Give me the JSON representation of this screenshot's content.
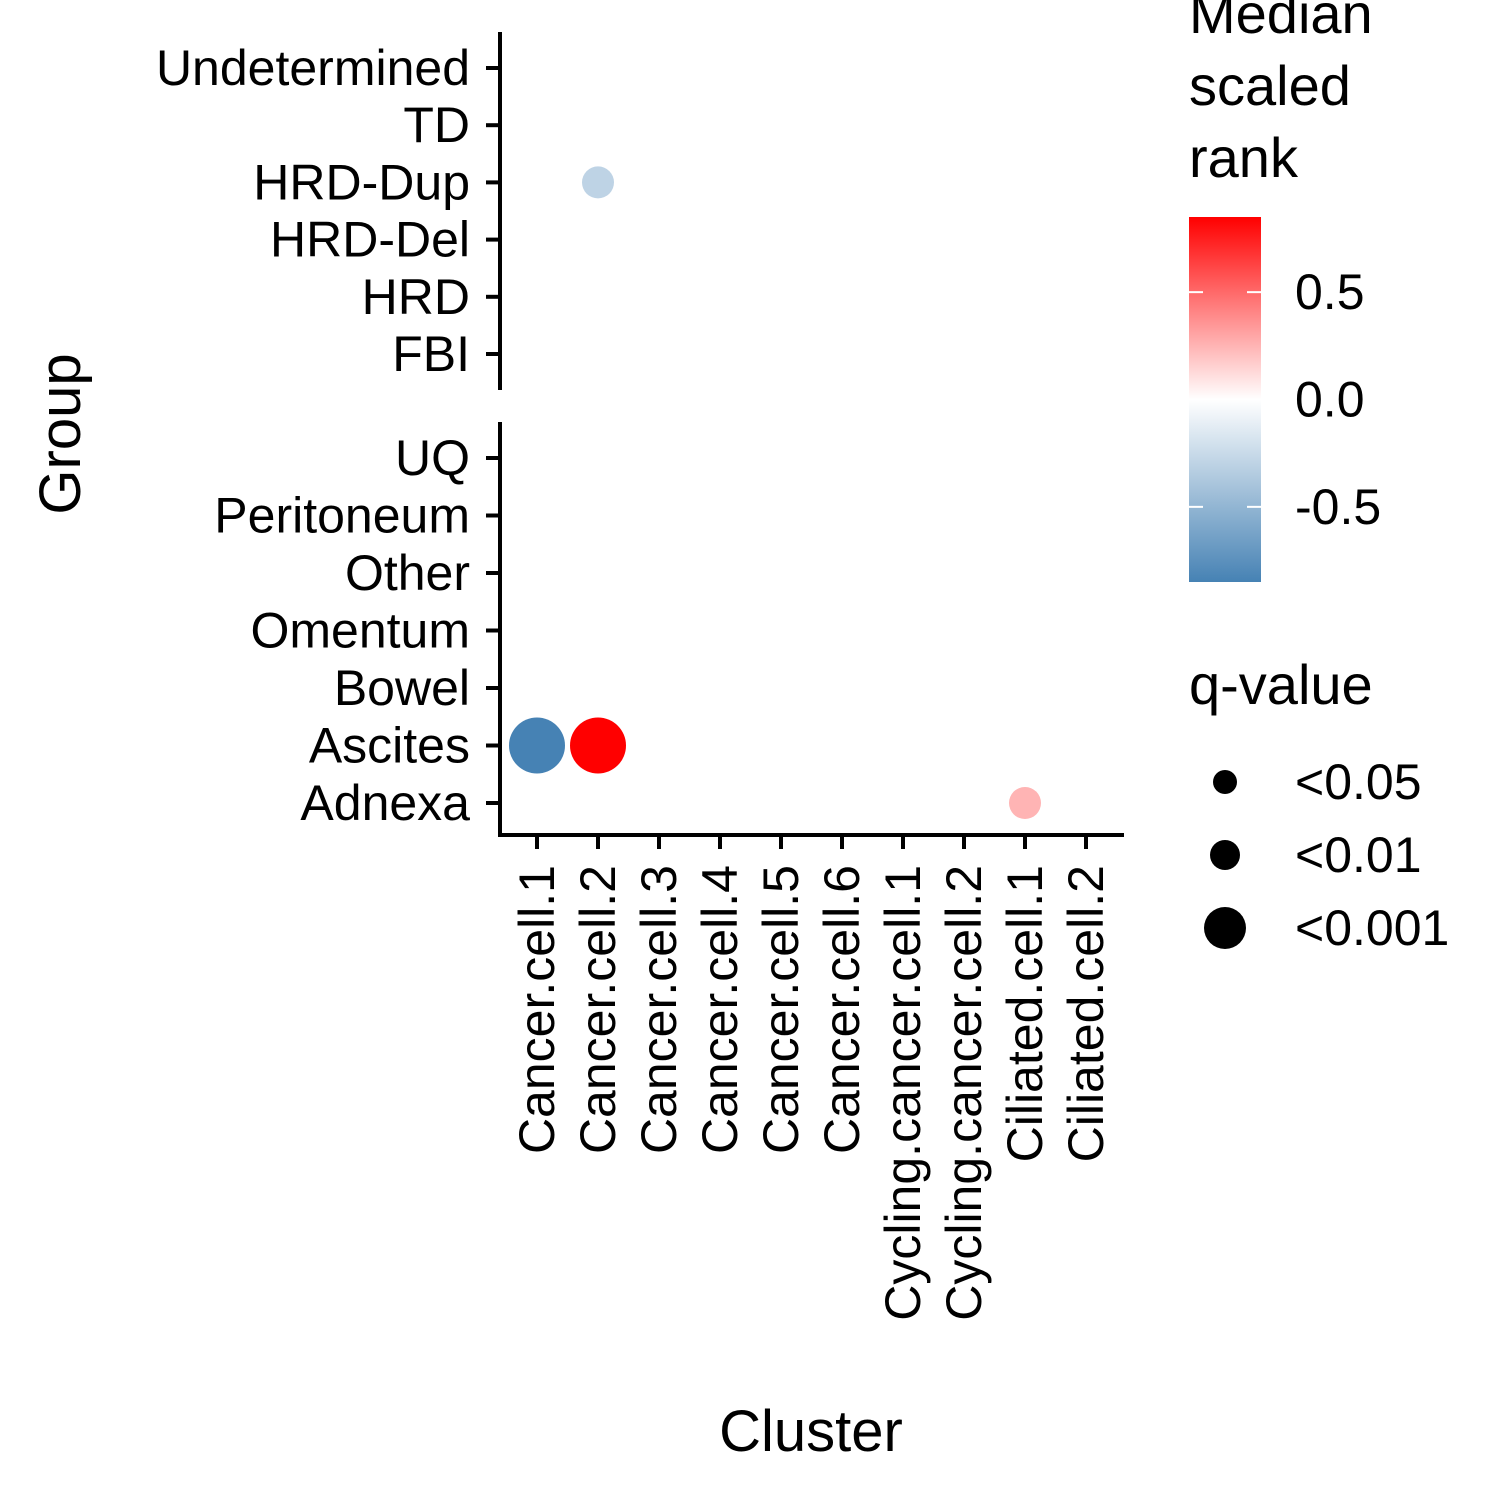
{
  "chart_data": {
    "type": "scatter",
    "title": "",
    "xlabel": "Cluster",
    "ylabel": "Group",
    "x_categories": [
      "Cancer.cell.1",
      "Cancer.cell.2",
      "Cancer.cell.3",
      "Cancer.cell.4",
      "Cancer.cell.5",
      "Cancer.cell.6",
      "Cycling.cancer.cell.1",
      "Cycling.cancer.cell.2",
      "Ciliated.cell.1",
      "Ciliated.cell.2"
    ],
    "panels": [
      {
        "name": "top",
        "categories": [
          "Undetermined",
          "TD",
          "HRD-Dup",
          "HRD-Del",
          "HRD",
          "FBI"
        ]
      },
      {
        "name": "bottom",
        "categories": [
          "UQ",
          "Peritoneum",
          "Other",
          "Omentum",
          "Bowel",
          "Ascites",
          "Adnexa"
        ]
      }
    ],
    "points": [
      {
        "panel": "top",
        "cluster": "Cancer.cell.2",
        "group": "HRD-Dup",
        "median_scaled_rank": -0.3,
        "q_value": "<0.05"
      },
      {
        "panel": "bottom",
        "cluster": "Cancer.cell.1",
        "group": "Ascites",
        "median_scaled_rank": -0.85,
        "q_value": "<0.001"
      },
      {
        "panel": "bottom",
        "cluster": "Cancer.cell.2",
        "group": "Ascites",
        "median_scaled_rank": 0.85,
        "q_value": "<0.001"
      },
      {
        "panel": "bottom",
        "cluster": "Ciliated.cell.1",
        "group": "Adnexa",
        "median_scaled_rank": 0.25,
        "q_value": "<0.05"
      }
    ],
    "color_legend": {
      "title_lines": [
        "Median",
        "scaled",
        "rank"
      ],
      "range": [
        -0.85,
        0.85
      ],
      "ticks": [
        {
          "value": 0.5,
          "label": "0.5"
        },
        {
          "value": 0.0,
          "label": "0.0"
        },
        {
          "value": -0.5,
          "label": "-0.5"
        }
      ],
      "low_color": "#4682b4",
      "mid_color": "#ffffff",
      "high_color": "#ff0000"
    },
    "size_legend": {
      "title": "q-value",
      "entries": [
        "<0.05",
        "<0.01",
        "<0.001"
      ]
    },
    "legend_position": "right",
    "grid": false
  }
}
